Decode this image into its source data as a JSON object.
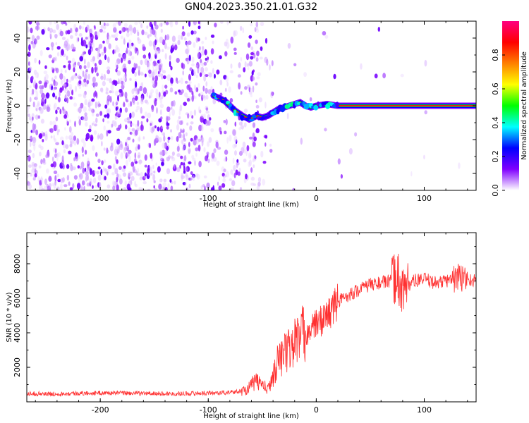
{
  "chart_data": [
    {
      "type": "heatmap",
      "title": "GN04.2023.350.21.01.G32",
      "xlabel": "Height of straight line (km)",
      "ylabel": "Frequency (Hz)",
      "xlim": [
        -268,
        148
      ],
      "ylim": [
        -50,
        50
      ],
      "x_ticks": [
        -200,
        -100,
        0,
        100
      ],
      "y_ticks": [
        -40,
        -20,
        0,
        20,
        40
      ],
      "colorbar": {
        "label": "Normalized spectral amplitude",
        "range": [
          0,
          1
        ],
        "ticks": [
          0.0,
          0.2,
          0.4,
          0.6,
          0.8
        ],
        "colormap": [
          "#ffffff",
          "#8000ff",
          "#0000ff",
          "#00ffff",
          "#00ff00",
          "#ffff00",
          "#ff8000",
          "#ff0000",
          "#ff0080"
        ]
      },
      "signal_track": {
        "x": [
          -95,
          -85,
          -75,
          -68,
          -62,
          -55,
          -50,
          -45,
          -40,
          -35,
          -30,
          -25,
          -20,
          -15,
          -10,
          -5,
          0,
          10,
          20,
          60,
          75,
          100,
          148
        ],
        "frequency": [
          6,
          3,
          -3,
          -6,
          -8,
          -6,
          -7,
          -6,
          -4,
          -2,
          -1,
          0,
          1,
          2,
          0,
          -1,
          0,
          1,
          0,
          0,
          0,
          0,
          0
        ]
      },
      "grid": false
    },
    {
      "type": "line",
      "xlabel": "Height of straight line (km)",
      "ylabel": "SNR (10 * v/v)",
      "xlim": [
        -268,
        148
      ],
      "ylim": [
        0,
        9800
      ],
      "x_ticks": [
        -200,
        -100,
        0,
        100
      ],
      "y_ticks": [
        2000,
        4000,
        6000,
        8000
      ],
      "line_color": "#ff3030",
      "series": [
        {
          "x": [
            -268,
            -250,
            -230,
            -210,
            -190,
            -170,
            -150,
            -130,
            -110,
            -90,
            -80,
            -70,
            -65,
            -60,
            -55,
            -50,
            -45,
            -40,
            -35,
            -30,
            -25,
            -20,
            -15,
            -10,
            -5,
            0,
            10,
            20,
            30,
            40,
            50,
            60,
            70,
            75,
            80,
            90,
            100,
            110,
            120,
            130,
            140,
            148
          ],
          "values": [
            500,
            450,
            480,
            500,
            520,
            500,
            480,
            470,
            500,
            520,
            550,
            600,
            700,
            1000,
            1200,
            1000,
            700,
            1500,
            2500,
            2800,
            3000,
            3500,
            3800,
            4000,
            4200,
            4500,
            5000,
            5800,
            6200,
            6500,
            6800,
            6900,
            7000,
            7300,
            6500,
            7000,
            7100,
            6900,
            7000,
            7200,
            7100,
            7000
          ]
        }
      ],
      "grid": false
    }
  ]
}
